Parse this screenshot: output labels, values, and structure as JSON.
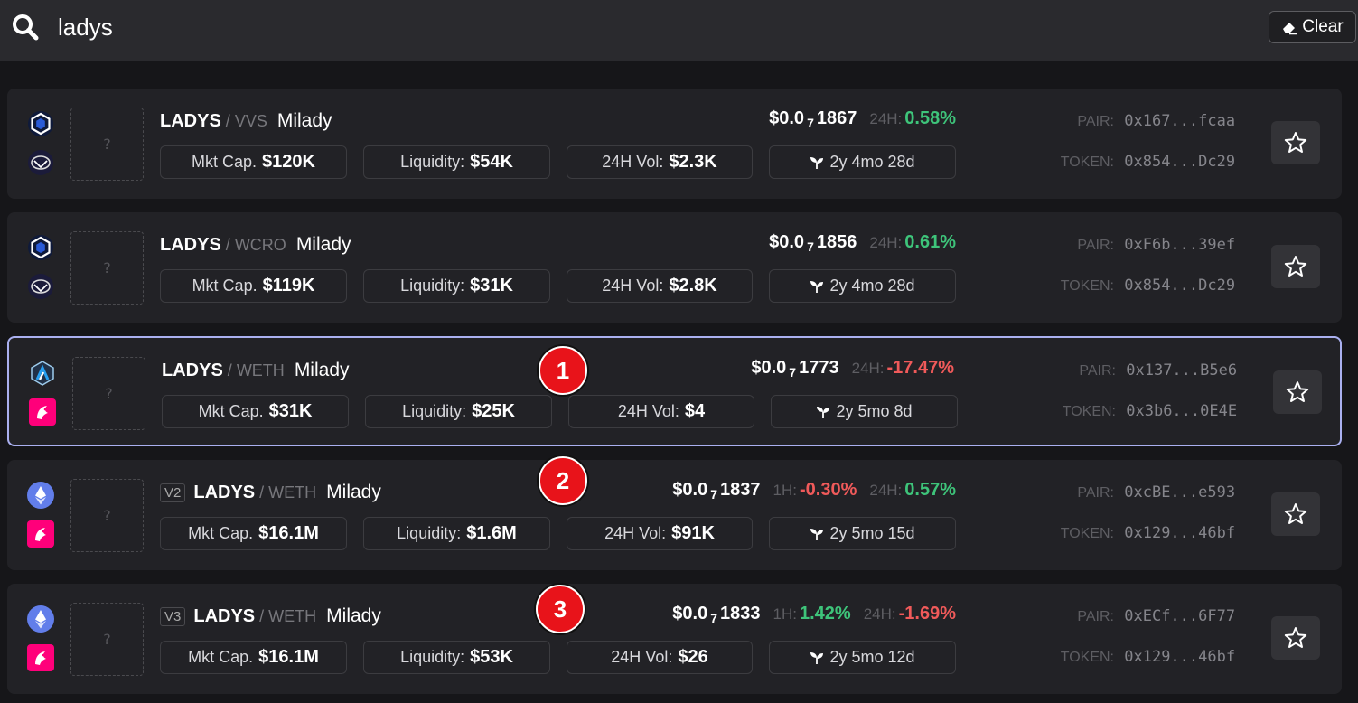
{
  "search": {
    "query": "ladys"
  },
  "clear_label": "Clear",
  "results": [
    {
      "version": "",
      "symbol": "LADYS",
      "quote": "VVS",
      "name": "Milady",
      "price_prefix": "$0.0",
      "price_zeros": "7",
      "price_digits": "1867",
      "change_1h_label": "",
      "change_1h": "",
      "change_24h_label": "24H:",
      "change_24h": "0.58%",
      "mkt_cap_label": "Mkt Cap.",
      "mkt_cap": "$120K",
      "liquidity_label": "Liquidity:",
      "liquidity": "$54K",
      "vol_label": "24H Vol:",
      "vol": "$2.3K",
      "age": "2y 4mo 28d",
      "pair_label": "PAIR:",
      "pair": "0x167...fcaa",
      "token_label": "TOKEN:",
      "token": "0x854...Dc29",
      "image_placeholder": "?",
      "chain_icon": "cronos-icon",
      "dex_icon": "vvs-icon"
    },
    {
      "version": "",
      "symbol": "LADYS",
      "quote": "WCRO",
      "name": "Milady",
      "price_prefix": "$0.0",
      "price_zeros": "7",
      "price_digits": "1856",
      "change_1h_label": "",
      "change_1h": "",
      "change_24h_label": "24H:",
      "change_24h": "0.61%",
      "mkt_cap_label": "Mkt Cap.",
      "mkt_cap": "$119K",
      "liquidity_label": "Liquidity:",
      "liquidity": "$31K",
      "vol_label": "24H Vol:",
      "vol": "$2.8K",
      "age": "2y 4mo 28d",
      "pair_label": "PAIR:",
      "pair": "0xF6b...39ef",
      "token_label": "TOKEN:",
      "token": "0x854...Dc29",
      "image_placeholder": "?",
      "chain_icon": "cronos-icon",
      "dex_icon": "vvs-icon"
    },
    {
      "version": "",
      "symbol": "LADYS",
      "quote": "WETH",
      "name": "Milady",
      "price_prefix": "$0.0",
      "price_zeros": "7",
      "price_digits": "1773",
      "change_1h_label": "",
      "change_1h": "",
      "change_24h_label": "24H:",
      "change_24h": "-17.47%",
      "mkt_cap_label": "Mkt Cap.",
      "mkt_cap": "$31K",
      "liquidity_label": "Liquidity:",
      "liquidity": "$25K",
      "vol_label": "24H Vol:",
      "vol": "$4",
      "age": "2y 5mo 8d",
      "pair_label": "PAIR:",
      "pair": "0x137...B5e6",
      "token_label": "TOKEN:",
      "token": "0x3b6...0E4E",
      "image_placeholder": "?",
      "chain_icon": "arbitrum-icon",
      "dex_icon": "uniswap-icon"
    },
    {
      "version": "V2",
      "symbol": "LADYS",
      "quote": "WETH",
      "name": "Milady",
      "price_prefix": "$0.0",
      "price_zeros": "7",
      "price_digits": "1837",
      "change_1h_label": "1H:",
      "change_1h": "-0.30%",
      "change_24h_label": "24H:",
      "change_24h": "0.57%",
      "mkt_cap_label": "Mkt Cap.",
      "mkt_cap": "$16.1M",
      "liquidity_label": "Liquidity:",
      "liquidity": "$1.6M",
      "vol_label": "24H Vol:",
      "vol": "$91K",
      "age": "2y 5mo 15d",
      "pair_label": "PAIR:",
      "pair": "0xcBE...e593",
      "token_label": "TOKEN:",
      "token": "0x129...46bf",
      "image_placeholder": "?",
      "chain_icon": "ethereum-icon",
      "dex_icon": "uniswap-icon"
    },
    {
      "version": "V3",
      "symbol": "LADYS",
      "quote": "WETH",
      "name": "Milady",
      "price_prefix": "$0.0",
      "price_zeros": "7",
      "price_digits": "1833",
      "change_1h_label": "1H:",
      "change_1h": "1.42%",
      "change_24h_label": "24H:",
      "change_24h": "-1.69%",
      "mkt_cap_label": "Mkt Cap.",
      "mkt_cap": "$16.1M",
      "liquidity_label": "Liquidity:",
      "liquidity": "$53K",
      "vol_label": "24H Vol:",
      "vol": "$26",
      "age": "2y 5mo 12d",
      "pair_label": "PAIR:",
      "pair": "0xECf...6F77",
      "token_label": "TOKEN:",
      "token": "0x129...46bf",
      "image_placeholder": "?",
      "chain_icon": "ethereum-icon",
      "dex_icon": "uniswap-icon"
    }
  ],
  "markers": [
    "1",
    "2",
    "3"
  ],
  "colors": {
    "positive": "#3ec47a",
    "negative": "#f05a5a",
    "selected_border": "#aab0f0",
    "marker": "#e8131a"
  }
}
